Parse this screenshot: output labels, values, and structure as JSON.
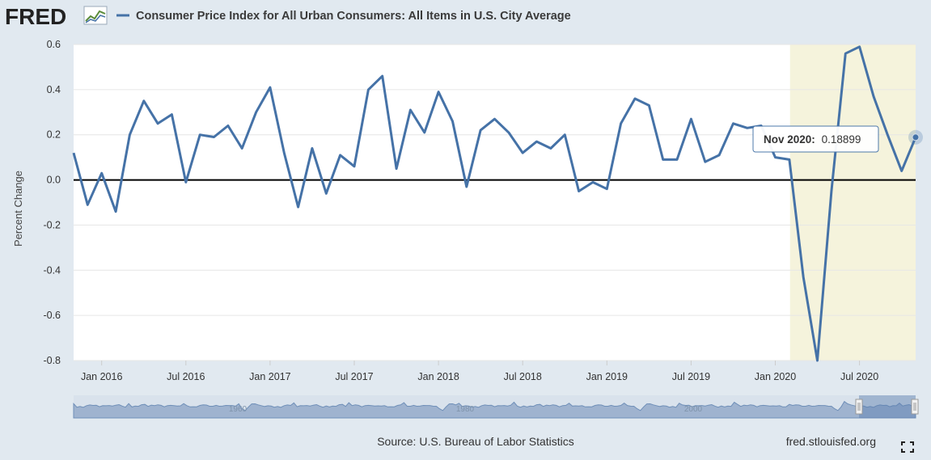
{
  "header": {
    "logo_text": "FRED",
    "series_title": "Consumer Price Index for All Urban Consumers: All Items in U.S. City Average",
    "series_color": "#4572a7"
  },
  "footer": {
    "source": "Source: U.S. Bureau of Labor Statistics",
    "site": "fred.stlouisfed.org",
    "fullscreen_icon": "expand-icon"
  },
  "tooltip": {
    "date_label": "Nov 2020:",
    "value_text": "0.18899"
  },
  "navigator": {
    "labels": [
      "1960",
      "1980",
      "2000"
    ]
  },
  "colors": {
    "background": "#e1e9f0",
    "plot_background": "#ffffff",
    "series": "#4572a7",
    "recession_band": "#f5f3dc",
    "zero_line": "#000000",
    "navigator_fill": "#9fb3cf"
  },
  "chart_data": {
    "type": "line",
    "title": "Consumer Price Index for All Urban Consumers: All Items in U.S. City Average",
    "xlabel": "",
    "ylabel": "Percent Change",
    "ylim": [
      -0.8,
      0.6
    ],
    "yticks": [
      "0.6",
      "0.4",
      "0.2",
      "0.0",
      "-0.2",
      "-0.4",
      "-0.6",
      "-0.8"
    ],
    "xticks": [
      "Jan 2016",
      "Jul 2016",
      "Jan 2017",
      "Jul 2017",
      "Jan 2018",
      "Jul 2018",
      "Jan 2019",
      "Jul 2019",
      "Jan 2020",
      "Jul 2020"
    ],
    "grid": true,
    "zero_line": true,
    "recession_shading": {
      "start": "2020-03",
      "end": "2020-11"
    },
    "x": [
      "2015-11",
      "2015-12",
      "2016-01",
      "2016-02",
      "2016-03",
      "2016-04",
      "2016-05",
      "2016-06",
      "2016-07",
      "2016-08",
      "2016-09",
      "2016-10",
      "2016-11",
      "2016-12",
      "2017-01",
      "2017-02",
      "2017-03",
      "2017-04",
      "2017-05",
      "2017-06",
      "2017-07",
      "2017-08",
      "2017-09",
      "2017-10",
      "2017-11",
      "2017-12",
      "2018-01",
      "2018-02",
      "2018-03",
      "2018-04",
      "2018-05",
      "2018-06",
      "2018-07",
      "2018-08",
      "2018-09",
      "2018-10",
      "2018-11",
      "2018-12",
      "2019-01",
      "2019-02",
      "2019-03",
      "2019-04",
      "2019-05",
      "2019-06",
      "2019-07",
      "2019-08",
      "2019-09",
      "2019-10",
      "2019-11",
      "2019-12",
      "2020-01",
      "2020-02",
      "2020-03",
      "2020-04",
      "2020-05",
      "2020-06",
      "2020-07",
      "2020-08",
      "2020-09",
      "2020-10",
      "2020-11"
    ],
    "series": [
      {
        "name": "Consumer Price Index for All Urban Consumers: All Items in U.S. City Average",
        "values": [
          0.12,
          -0.11,
          0.03,
          -0.14,
          0.2,
          0.35,
          0.25,
          0.29,
          -0.01,
          0.2,
          0.19,
          0.24,
          0.14,
          0.3,
          0.41,
          0.12,
          -0.12,
          0.14,
          -0.06,
          0.11,
          0.06,
          0.4,
          0.46,
          0.05,
          0.31,
          0.21,
          0.39,
          0.26,
          -0.03,
          0.22,
          0.27,
          0.21,
          0.12,
          0.17,
          0.14,
          0.2,
          -0.05,
          -0.01,
          -0.04,
          0.25,
          0.36,
          0.33,
          0.09,
          0.09,
          0.27,
          0.08,
          0.11,
          0.25,
          0.23,
          0.24,
          0.1,
          0.09,
          -0.43,
          -0.8,
          -0.05,
          0.56,
          0.59,
          0.37,
          0.2,
          0.04,
          0.18899
        ]
      }
    ]
  }
}
